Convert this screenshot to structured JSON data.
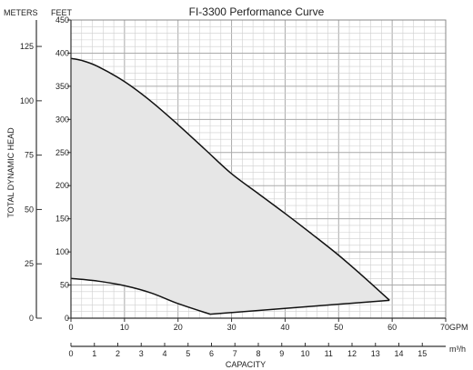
{
  "chart_data": {
    "type": "area",
    "title": "FI-3300 Performance Curve",
    "ylabel": "TOTAL DYNAMIC HEAD",
    "xlabel": "CAPACITY",
    "x_unit_primary": "GPM",
    "x_unit_secondary": "m³/h",
    "y_unit_left": "METERS",
    "y_unit_right": "FEET",
    "xlim": [
      0,
      70
    ],
    "x_ticks": [
      0,
      10,
      20,
      30,
      40,
      50,
      60,
      70
    ],
    "x_tick_labels": [
      "0",
      "10",
      "20",
      "30",
      "40",
      "50",
      "60",
      "70"
    ],
    "x2lim": [
      0,
      16
    ],
    "x2_ticks": [
      0,
      1,
      2,
      3,
      4,
      5,
      6,
      7,
      8,
      9,
      10,
      11,
      12,
      13,
      14,
      15
    ],
    "x2_tick_labels": [
      "0",
      "1",
      "2",
      "3",
      "4",
      "5",
      "6",
      "7",
      "8",
      "9",
      "10",
      "11",
      "12",
      "13",
      "14",
      "15"
    ],
    "ylim_feet": [
      0,
      450
    ],
    "y_feet_ticks": [
      0,
      50,
      100,
      150,
      200,
      250,
      300,
      350,
      400,
      450
    ],
    "y_feet_tick_labels": [
      "0",
      "50",
      "100",
      "150",
      "200",
      "250",
      "300",
      "350",
      "400",
      "450"
    ],
    "y_meters_ticks": [
      0,
      25,
      50,
      75,
      100,
      125
    ],
    "y_meters_tick_labels": [
      "0",
      "25",
      "50",
      "75",
      "100",
      "125"
    ],
    "grid": true,
    "legend": "none",
    "series": [
      {
        "role": "upper boundary (head in feet vs GPM)",
        "x": [
          0,
          2,
          5,
          10,
          15,
          20,
          25,
          30,
          35,
          40,
          45,
          50,
          55,
          59.5
        ],
        "y": [
          392,
          389,
          380,
          357,
          327,
          292,
          255,
          218,
          188,
          158,
          127,
          95,
          60,
          27
        ]
      },
      {
        "role": "lower boundary (head in feet vs GPM)",
        "x": [
          0,
          5,
          10,
          15,
          20,
          26,
          59.5
        ],
        "y": [
          60,
          56,
          49,
          38,
          22,
          6,
          27
        ]
      }
    ],
    "colors": {
      "fill": "#e6e6e6",
      "curve": "#111111",
      "grid_minor": "#cfcfcf",
      "grid_major": "#aaaaaa",
      "axis": "#333333"
    }
  }
}
